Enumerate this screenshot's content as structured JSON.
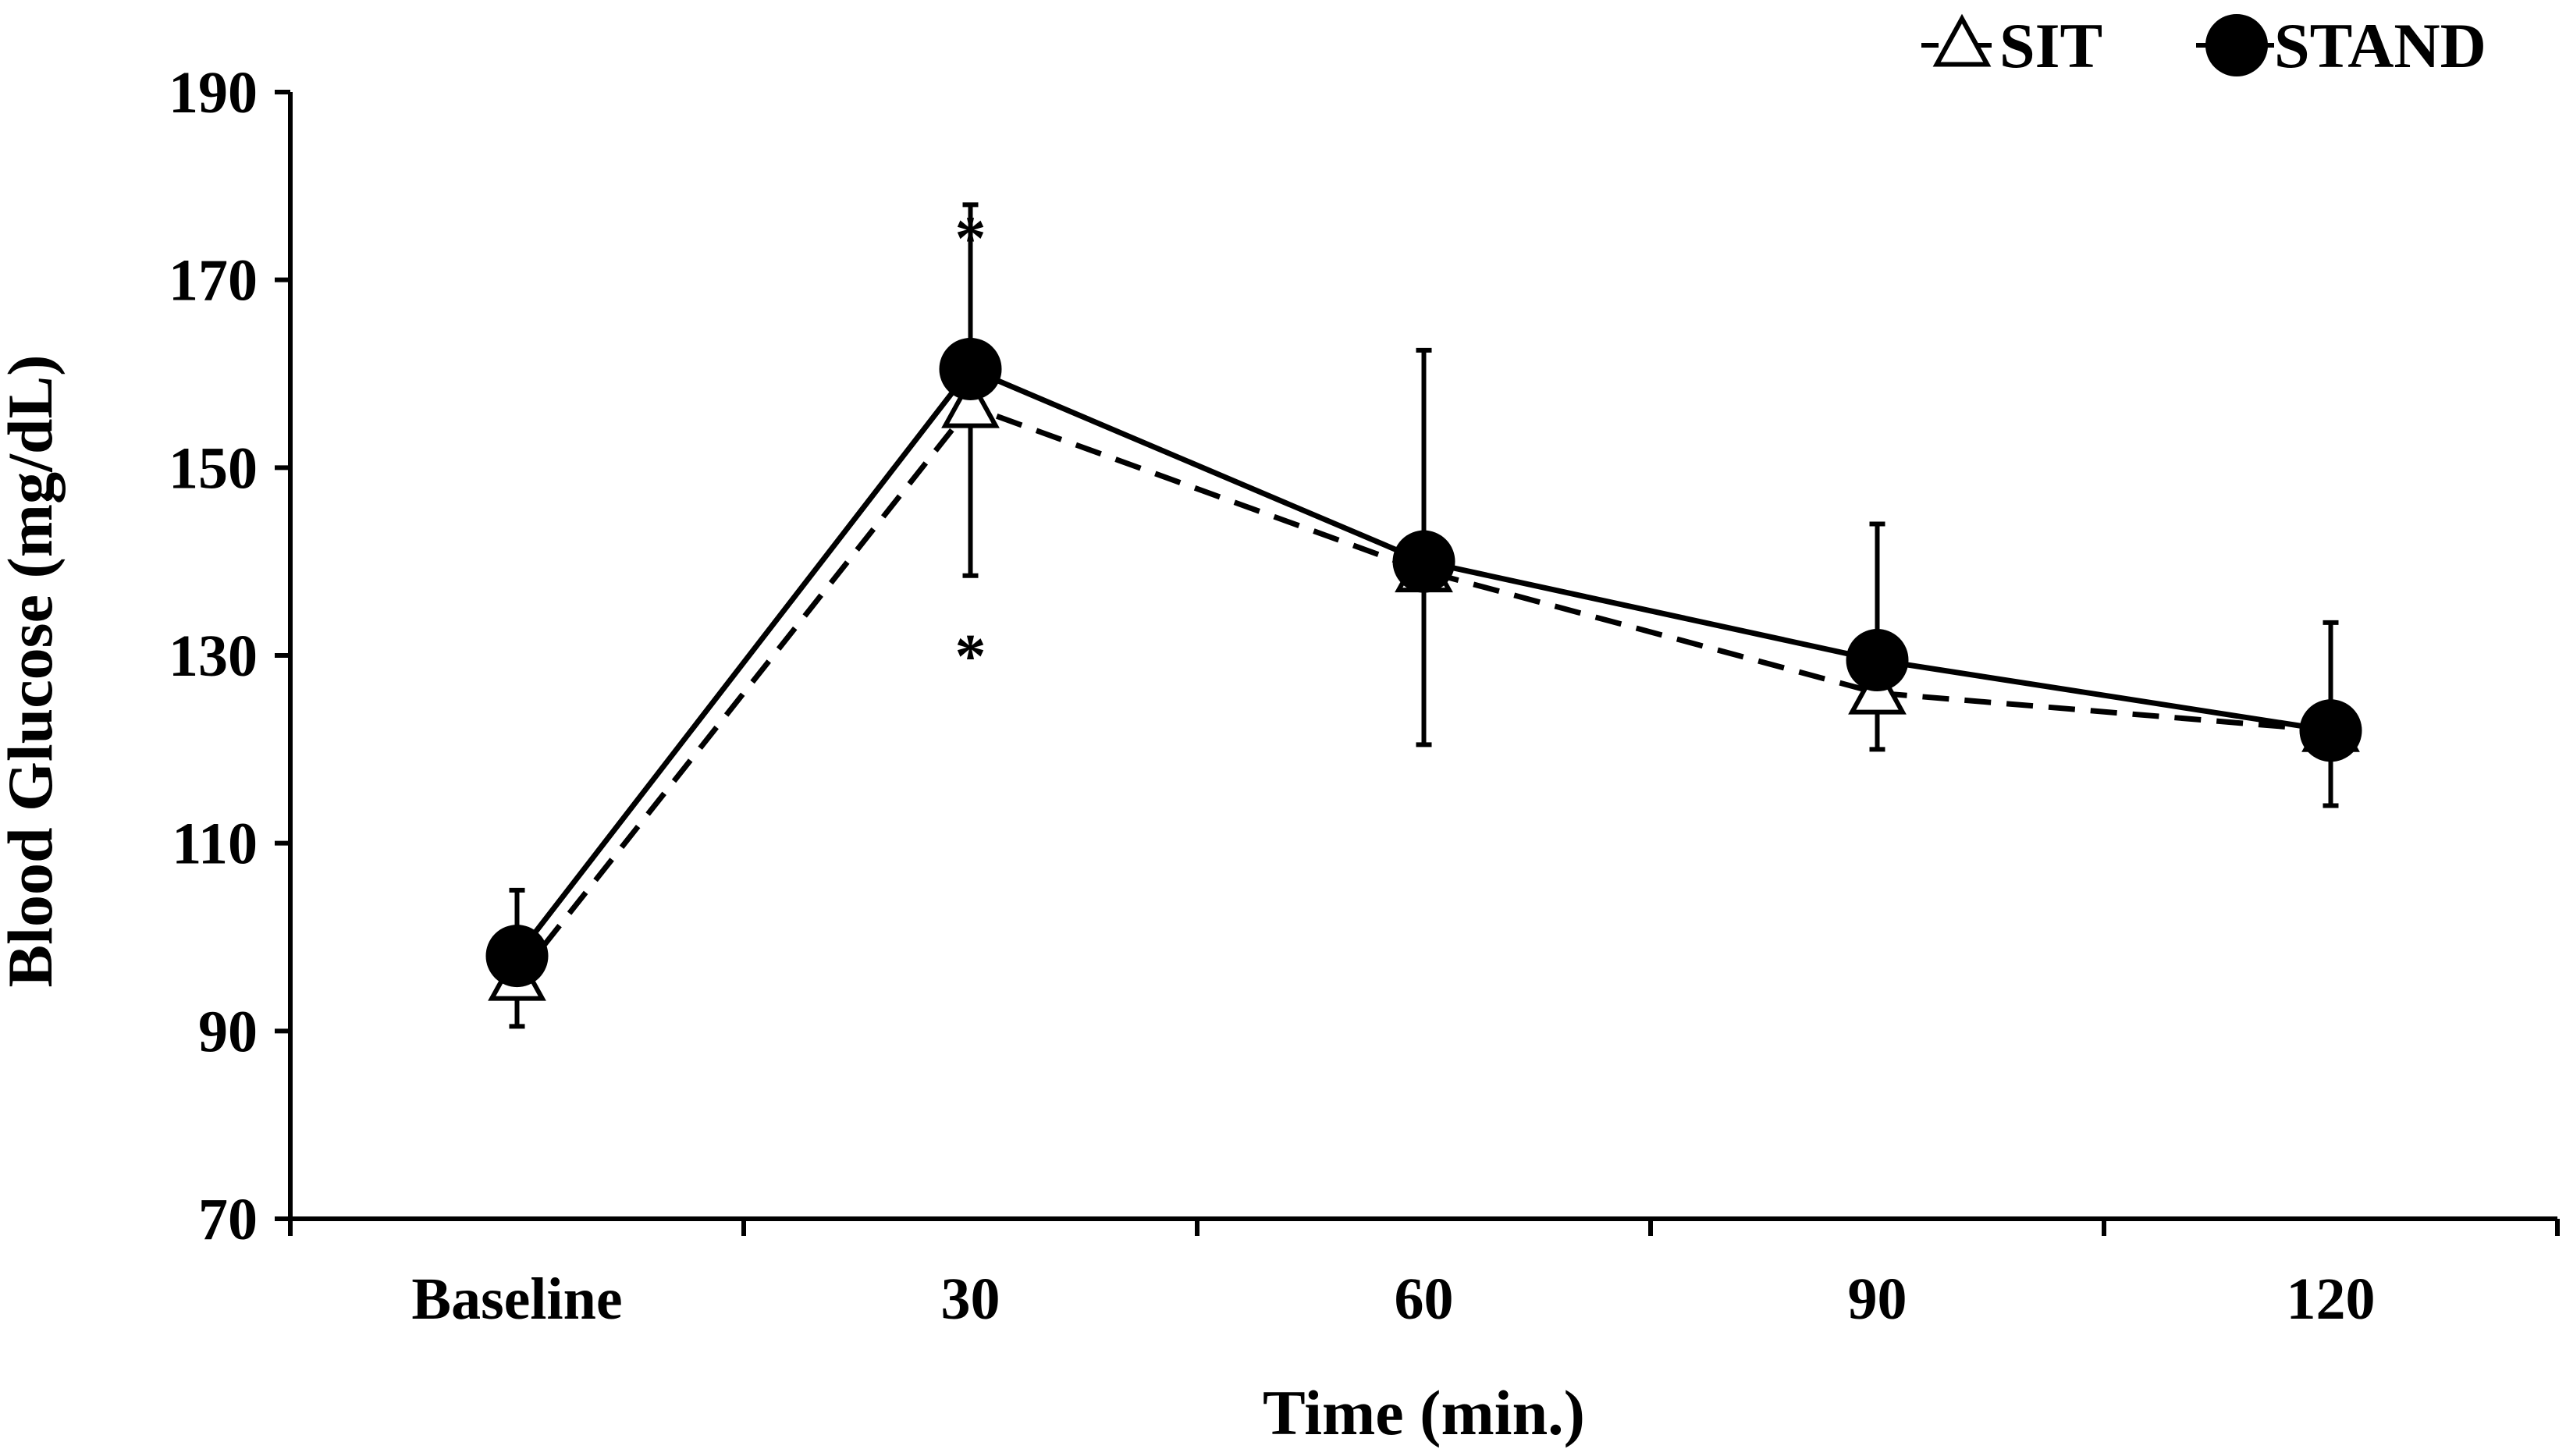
{
  "chart_data": {
    "type": "line",
    "title": "",
    "xlabel": "Time (min.)",
    "ylabel": "Blood Glucose (mg/dL)",
    "categories": [
      "Baseline",
      "30",
      "60",
      "90",
      "120"
    ],
    "ylim": [
      70,
      190
    ],
    "yticks": [
      70,
      90,
      110,
      130,
      150,
      170,
      190
    ],
    "grid": false,
    "legend_position": "top-right",
    "series": [
      {
        "name": "SIT",
        "marker": "open-triangle",
        "line_style": "dashed",
        "values": [
          95.5,
          156.5,
          139,
          126,
          122
        ],
        "error_minus": [
          5,
          18,
          18.5,
          6,
          8
        ],
        "error_plus": [
          0,
          0,
          0,
          0,
          0
        ]
      },
      {
        "name": "STAND",
        "marker": "filled-circle",
        "line_style": "solid",
        "values": [
          98,
          160.5,
          140,
          129.5,
          122
        ],
        "error_minus": [
          0,
          0,
          0,
          0,
          0
        ],
        "error_plus": [
          7,
          17.5,
          22.5,
          14.5,
          11.5
        ]
      }
    ],
    "annotations": [
      {
        "text": "*",
        "category": "30",
        "y": 175.5
      },
      {
        "text": "*",
        "category": "30",
        "y": 131
      }
    ]
  },
  "colors": {
    "line": "#000000",
    "background": "#ffffff",
    "open_marker_fill": "#ffffff"
  }
}
